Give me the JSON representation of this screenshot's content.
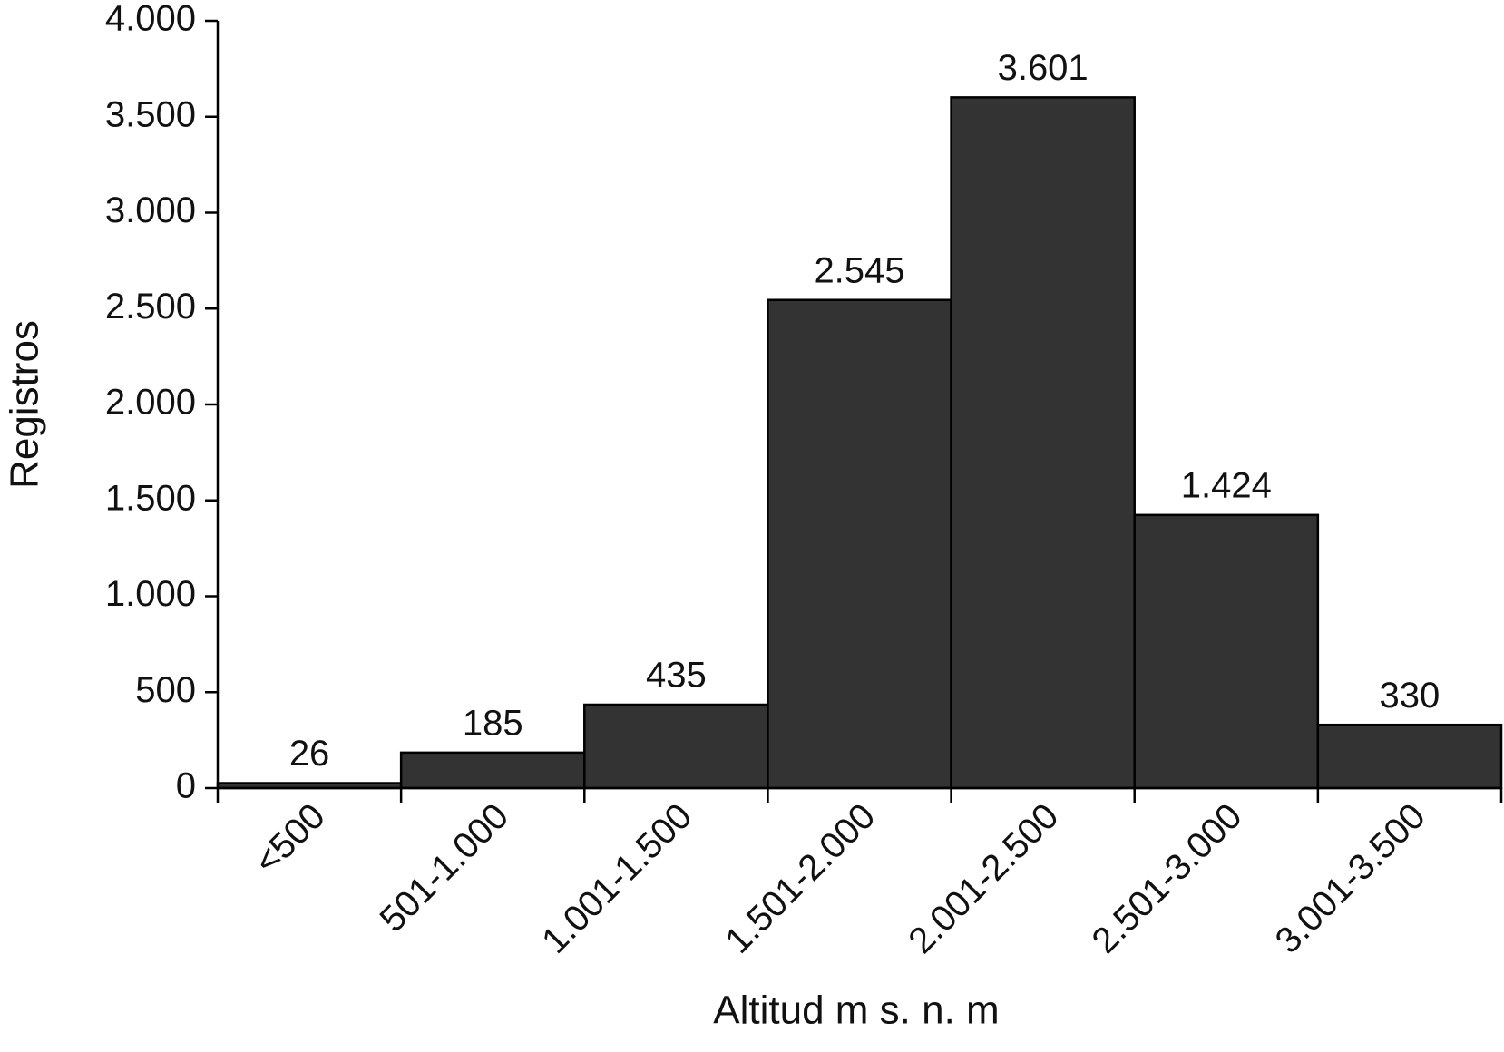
{
  "chart_data": {
    "type": "bar",
    "x_label": "Altitud m s. n. m",
    "y_label": "Registros",
    "categories": [
      "<500",
      "501-1.000",
      "1.001-1.500",
      "1.501-2.000",
      "2.001-2.500",
      "2.501-3.000",
      "3.001-3.500"
    ],
    "values": [
      26,
      185,
      435,
      2545,
      3601,
      1424,
      330
    ],
    "value_labels": [
      "26",
      "185",
      "435",
      "2.545",
      "3.601",
      "1.424",
      "330"
    ],
    "color": "#333333",
    "ylim": [
      0,
      4000
    ],
    "yticks": [
      0,
      500,
      {
        "value": 1000,
        "label": "1.000"
      },
      {
        "value": 1500,
        "label": "1.500"
      },
      {
        "value": 2000,
        "label": "2.000"
      },
      {
        "value": 2500,
        "label": "2.500"
      },
      {
        "value": 3000,
        "label": "3.000"
      },
      {
        "value": 3500,
        "label": "3.500"
      },
      {
        "value": 4000,
        "label": "4.000"
      }
    ],
    "grid": false
  }
}
